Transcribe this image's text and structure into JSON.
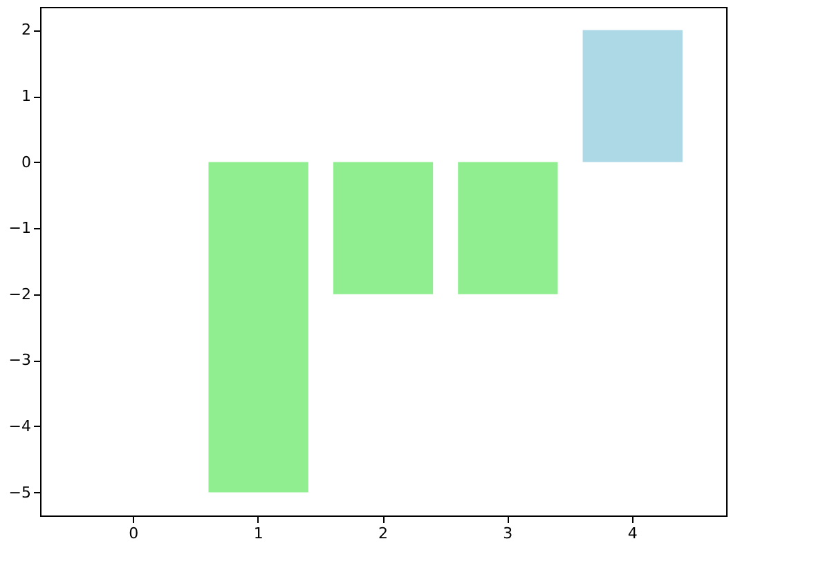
{
  "chart_data": {
    "type": "bar",
    "categories": [
      "0",
      "1",
      "2",
      "3",
      "4"
    ],
    "values": [
      0,
      -5,
      -2,
      -2,
      2
    ],
    "colors": [
      "#add8e6",
      "#90ee90",
      "#90ee90",
      "#90ee90",
      "#add8e6"
    ],
    "ylim": [
      -5.35,
      2.35
    ],
    "yticks": [
      {
        "value": -5,
        "label": "−5"
      },
      {
        "value": -4,
        "label": "−4"
      },
      {
        "value": -3,
        "label": "−3"
      },
      {
        "value": -2,
        "label": "−2"
      },
      {
        "value": -1,
        "label": "−1"
      },
      0,
      1,
      2
    ],
    "grid": false
  }
}
